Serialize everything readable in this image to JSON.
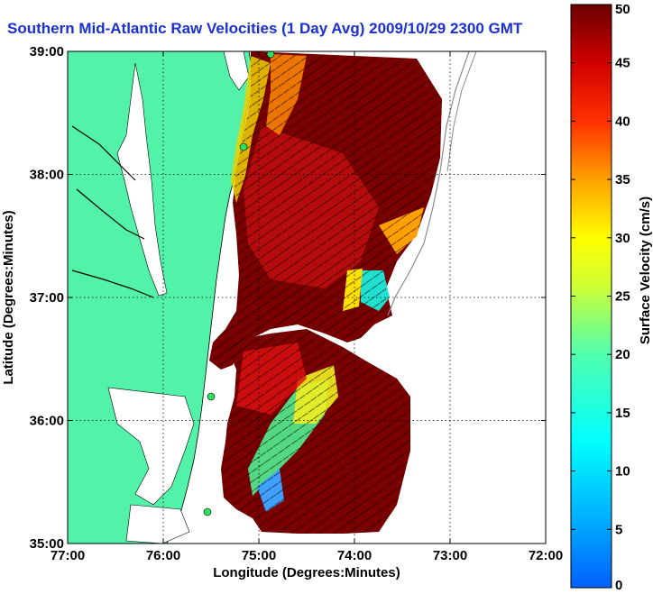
{
  "title": "Southern Mid-Atlantic Raw Velocities (1 Day Avg) 2009/10/29 2300 GMT",
  "map": {
    "xlabel": "Longitude (Degrees:Minutes)",
    "ylabel": "Latitude (Degrees:Minutes)",
    "x_ticks": [
      "77:00",
      "76:00",
      "75:00",
      "74:00",
      "73:00",
      "72:00"
    ],
    "y_ticks": [
      "39:00",
      "38:00",
      "37:00",
      "36:00",
      "35:00"
    ],
    "lon_range": [
      -77,
      -72
    ],
    "lat_range": [
      35,
      39
    ],
    "grid": "dotted",
    "colors": {
      "land": "#52f2a8",
      "water": "#ffffff",
      "coast": "#000000"
    }
  },
  "colorbar": {
    "label": "Surface Velocity (cm/s)",
    "ticks": [
      "50",
      "45",
      "40",
      "35",
      "30",
      "25",
      "20",
      "15",
      "10",
      "5",
      "0"
    ],
    "range": [
      0,
      50
    ],
    "colormap": "jet"
  }
}
